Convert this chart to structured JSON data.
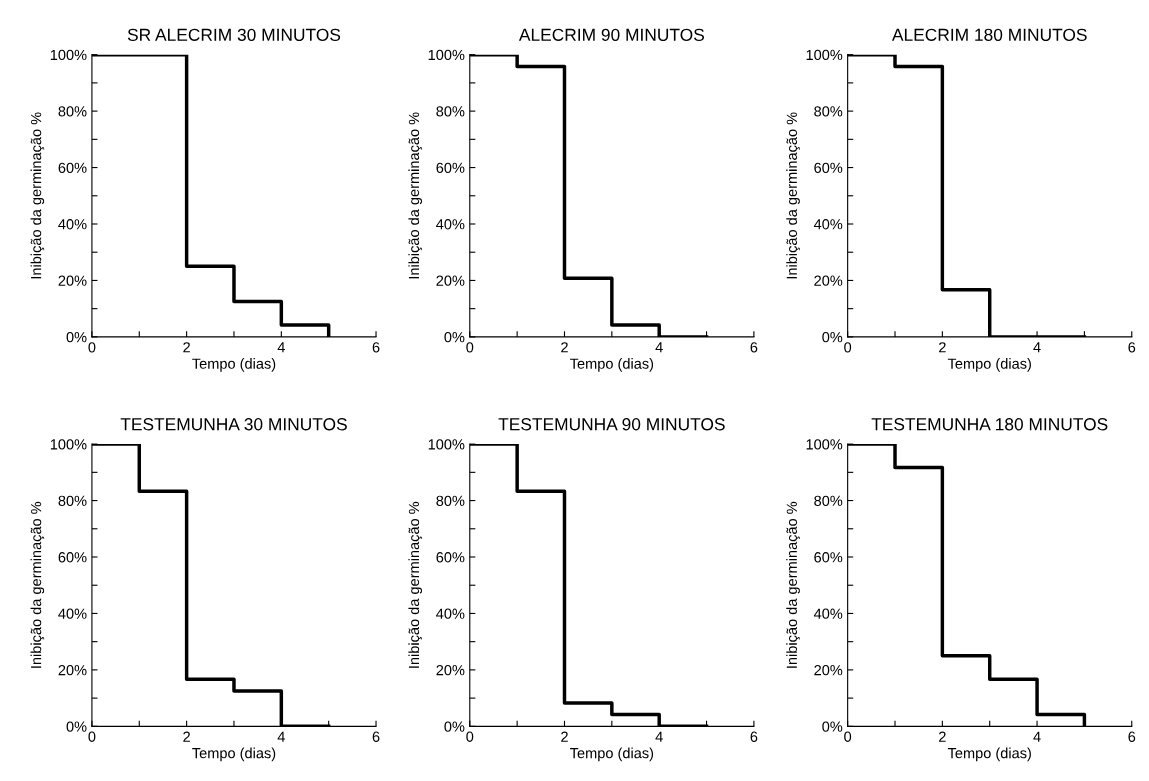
{
  "chart_data": [
    {
      "type": "step",
      "title": "SR ALECRIM 30 MINUTOS",
      "xlabel": "Tempo (dias)",
      "ylabel": "Inibição da germinação %",
      "x": [
        0,
        1,
        2,
        3,
        4,
        5
      ],
      "values": [
        100,
        100,
        25,
        12.5,
        4.2,
        0
      ],
      "color": "#000000",
      "xlim": [
        0,
        6
      ],
      "ylim": [
        0,
        100
      ],
      "xticks": [
        0,
        {
          "value": 1,
          "label": null
        },
        2,
        {
          "value": 3,
          "label": null
        },
        4,
        {
          "value": 5,
          "label": null
        },
        6
      ],
      "yticks": [
        {
          "value": 0,
          "label": "0%"
        },
        {
          "value": 10,
          "label": null
        },
        {
          "value": 20,
          "label": "20%"
        },
        {
          "value": 30,
          "label": null
        },
        {
          "value": 40,
          "label": "40%"
        },
        {
          "value": 50,
          "label": null
        },
        {
          "value": 60,
          "label": "60%"
        },
        {
          "value": 70,
          "label": null
        },
        {
          "value": 80,
          "label": "80%"
        },
        {
          "value": 90,
          "label": null
        },
        {
          "value": 100,
          "label": "100%"
        }
      ],
      "grid": false
    },
    {
      "type": "step",
      "title": "ALECRIM 90 MINUTOS",
      "xlabel": "Tempo (dias)",
      "ylabel": "Inibição da germinação %",
      "x": [
        0,
        1,
        2,
        3,
        4,
        5
      ],
      "values": [
        100,
        95.8,
        20.8,
        4.2,
        0,
        0
      ],
      "color": "#000000",
      "xlim": [
        0,
        6
      ],
      "ylim": [
        0,
        100
      ],
      "xticks": [
        0,
        {
          "value": 1,
          "label": null
        },
        2,
        {
          "value": 3,
          "label": null
        },
        4,
        {
          "value": 5,
          "label": null
        },
        6
      ],
      "yticks": [
        {
          "value": 0,
          "label": "0%"
        },
        {
          "value": 10,
          "label": null
        },
        {
          "value": 20,
          "label": "20%"
        },
        {
          "value": 30,
          "label": null
        },
        {
          "value": 40,
          "label": "40%"
        },
        {
          "value": 50,
          "label": null
        },
        {
          "value": 60,
          "label": "60%"
        },
        {
          "value": 70,
          "label": null
        },
        {
          "value": 80,
          "label": "80%"
        },
        {
          "value": 90,
          "label": null
        },
        {
          "value": 100,
          "label": "100%"
        }
      ],
      "grid": false
    },
    {
      "type": "step",
      "title": "ALECRIM 180 MINUTOS",
      "xlabel": "Tempo (dias)",
      "ylabel": "Inibição da germinação %",
      "x": [
        0,
        1,
        2,
        3,
        4,
        5
      ],
      "values": [
        100,
        95.8,
        16.7,
        0,
        0,
        0
      ],
      "color": "#000000",
      "xlim": [
        0,
        6
      ],
      "ylim": [
        0,
        100
      ],
      "xticks": [
        0,
        {
          "value": 1,
          "label": null
        },
        2,
        {
          "value": 3,
          "label": null
        },
        4,
        {
          "value": 5,
          "label": null
        },
        6
      ],
      "yticks": [
        {
          "value": 0,
          "label": "0%"
        },
        {
          "value": 10,
          "label": null
        },
        {
          "value": 20,
          "label": "20%"
        },
        {
          "value": 30,
          "label": null
        },
        {
          "value": 40,
          "label": "40%"
        },
        {
          "value": 50,
          "label": null
        },
        {
          "value": 60,
          "label": "60%"
        },
        {
          "value": 70,
          "label": null
        },
        {
          "value": 80,
          "label": "80%"
        },
        {
          "value": 90,
          "label": null
        },
        {
          "value": 100,
          "label": "100%"
        }
      ],
      "grid": false
    },
    {
      "type": "step",
      "title": "TESTEMUNHA 30 MINUTOS",
      "xlabel": "Tempo (dias)",
      "ylabel": "Inibição da germinação %",
      "x": [
        0,
        1,
        2,
        3,
        4,
        5
      ],
      "values": [
        100,
        83.3,
        16.7,
        12.5,
        0,
        0
      ],
      "color": "#000000",
      "xlim": [
        0,
        6
      ],
      "ylim": [
        0,
        100
      ],
      "xticks": [
        0,
        {
          "value": 1,
          "label": null
        },
        2,
        {
          "value": 3,
          "label": null
        },
        4,
        {
          "value": 5,
          "label": null
        },
        6
      ],
      "yticks": [
        {
          "value": 0,
          "label": "0%"
        },
        {
          "value": 10,
          "label": null
        },
        {
          "value": 20,
          "label": "20%"
        },
        {
          "value": 30,
          "label": null
        },
        {
          "value": 40,
          "label": "40%"
        },
        {
          "value": 50,
          "label": null
        },
        {
          "value": 60,
          "label": "60%"
        },
        {
          "value": 70,
          "label": null
        },
        {
          "value": 80,
          "label": "80%"
        },
        {
          "value": 90,
          "label": null
        },
        {
          "value": 100,
          "label": "100%"
        }
      ],
      "grid": false
    },
    {
      "type": "step",
      "title": "TESTEMUNHA 90 MINUTOS",
      "xlabel": "Tempo (dias)",
      "ylabel": "Inibição da germinação %",
      "x": [
        0,
        1,
        2,
        3,
        4,
        5
      ],
      "values": [
        100,
        83.3,
        8.3,
        4.2,
        0,
        0
      ],
      "color": "#000000",
      "xlim": [
        0,
        6
      ],
      "ylim": [
        0,
        100
      ],
      "xticks": [
        0,
        {
          "value": 1,
          "label": null
        },
        2,
        {
          "value": 3,
          "label": null
        },
        4,
        {
          "value": 5,
          "label": null
        },
        6
      ],
      "yticks": [
        {
          "value": 0,
          "label": "0%"
        },
        {
          "value": 10,
          "label": null
        },
        {
          "value": 20,
          "label": "20%"
        },
        {
          "value": 30,
          "label": null
        },
        {
          "value": 40,
          "label": "40%"
        },
        {
          "value": 50,
          "label": null
        },
        {
          "value": 60,
          "label": "60%"
        },
        {
          "value": 70,
          "label": null
        },
        {
          "value": 80,
          "label": "80%"
        },
        {
          "value": 90,
          "label": null
        },
        {
          "value": 100,
          "label": "100%"
        }
      ],
      "grid": false
    },
    {
      "type": "step",
      "title": "TESTEMUNHA 180 MINUTOS",
      "xlabel": "Tempo (dias)",
      "ylabel": "Inibição da germinação %",
      "x": [
        0,
        1,
        2,
        3,
        4,
        5
      ],
      "values": [
        100,
        91.7,
        25,
        16.7,
        4.2,
        0
      ],
      "color": "#000000",
      "xlim": [
        0,
        6
      ],
      "ylim": [
        0,
        100
      ],
      "xticks": [
        0,
        {
          "value": 1,
          "label": null
        },
        2,
        {
          "value": 3,
          "label": null
        },
        4,
        {
          "value": 5,
          "label": null
        },
        6
      ],
      "yticks": [
        {
          "value": 0,
          "label": "0%"
        },
        {
          "value": 10,
          "label": null
        },
        {
          "value": 20,
          "label": "20%"
        },
        {
          "value": 30,
          "label": null
        },
        {
          "value": 40,
          "label": "40%"
        },
        {
          "value": 50,
          "label": null
        },
        {
          "value": 60,
          "label": "60%"
        },
        {
          "value": 70,
          "label": null
        },
        {
          "value": 80,
          "label": "80%"
        },
        {
          "value": 90,
          "label": null
        },
        {
          "value": 100,
          "label": "100%"
        }
      ],
      "grid": false
    }
  ]
}
